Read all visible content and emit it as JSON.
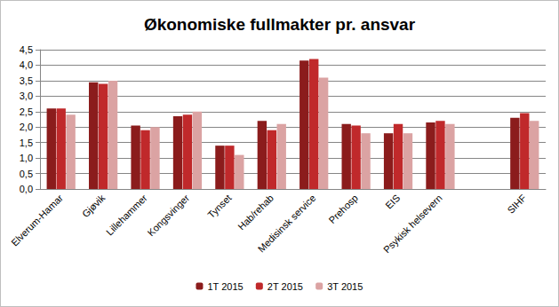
{
  "chart_data": {
    "type": "bar",
    "title": "Økonomiske fullmakter pr. ansvar",
    "categories": [
      "Elverum-Hamar",
      "Gjøvik",
      "Lillehammer",
      "Kongsvinger",
      "Tynset",
      "Hab/rehab",
      "Medisinsk service",
      "Prehosp",
      "EIS",
      "Psykisk helsevern",
      null,
      "SIHF"
    ],
    "series": [
      {
        "name": "1T 2015",
        "color": "#8b1c1c",
        "values": [
          2.6,
          3.45,
          2.05,
          2.35,
          1.4,
          2.2,
          4.15,
          2.1,
          1.8,
          2.15,
          null,
          2.3
        ]
      },
      {
        "name": "2T 2015",
        "color": "#c0292b",
        "values": [
          2.6,
          3.4,
          1.9,
          2.4,
          1.4,
          1.9,
          4.2,
          2.05,
          2.1,
          2.2,
          null,
          2.45
        ]
      },
      {
        "name": "3T 2015",
        "color": "#dba3a3",
        "values": [
          2.4,
          3.5,
          2.0,
          2.5,
          1.1,
          2.1,
          3.6,
          1.8,
          1.8,
          2.1,
          null,
          2.2
        ]
      }
    ],
    "ylim": [
      0,
      4.5
    ],
    "yticks": [
      {
        "value": 0,
        "label": "0,0"
      },
      {
        "value": 0.5,
        "label": "0,5"
      },
      {
        "value": 1,
        "label": "1,0"
      },
      {
        "value": 1.5,
        "label": "1,5"
      },
      {
        "value": 2,
        "label": "2,0"
      },
      {
        "value": 2.5,
        "label": "2,5"
      },
      {
        "value": 3,
        "label": "3,0"
      },
      {
        "value": 3.5,
        "label": "3,5"
      },
      {
        "value": 4,
        "label": "4,0"
      },
      {
        "value": 4.5,
        "label": "4,5"
      }
    ],
    "grid": true,
    "legend": "bottom"
  }
}
